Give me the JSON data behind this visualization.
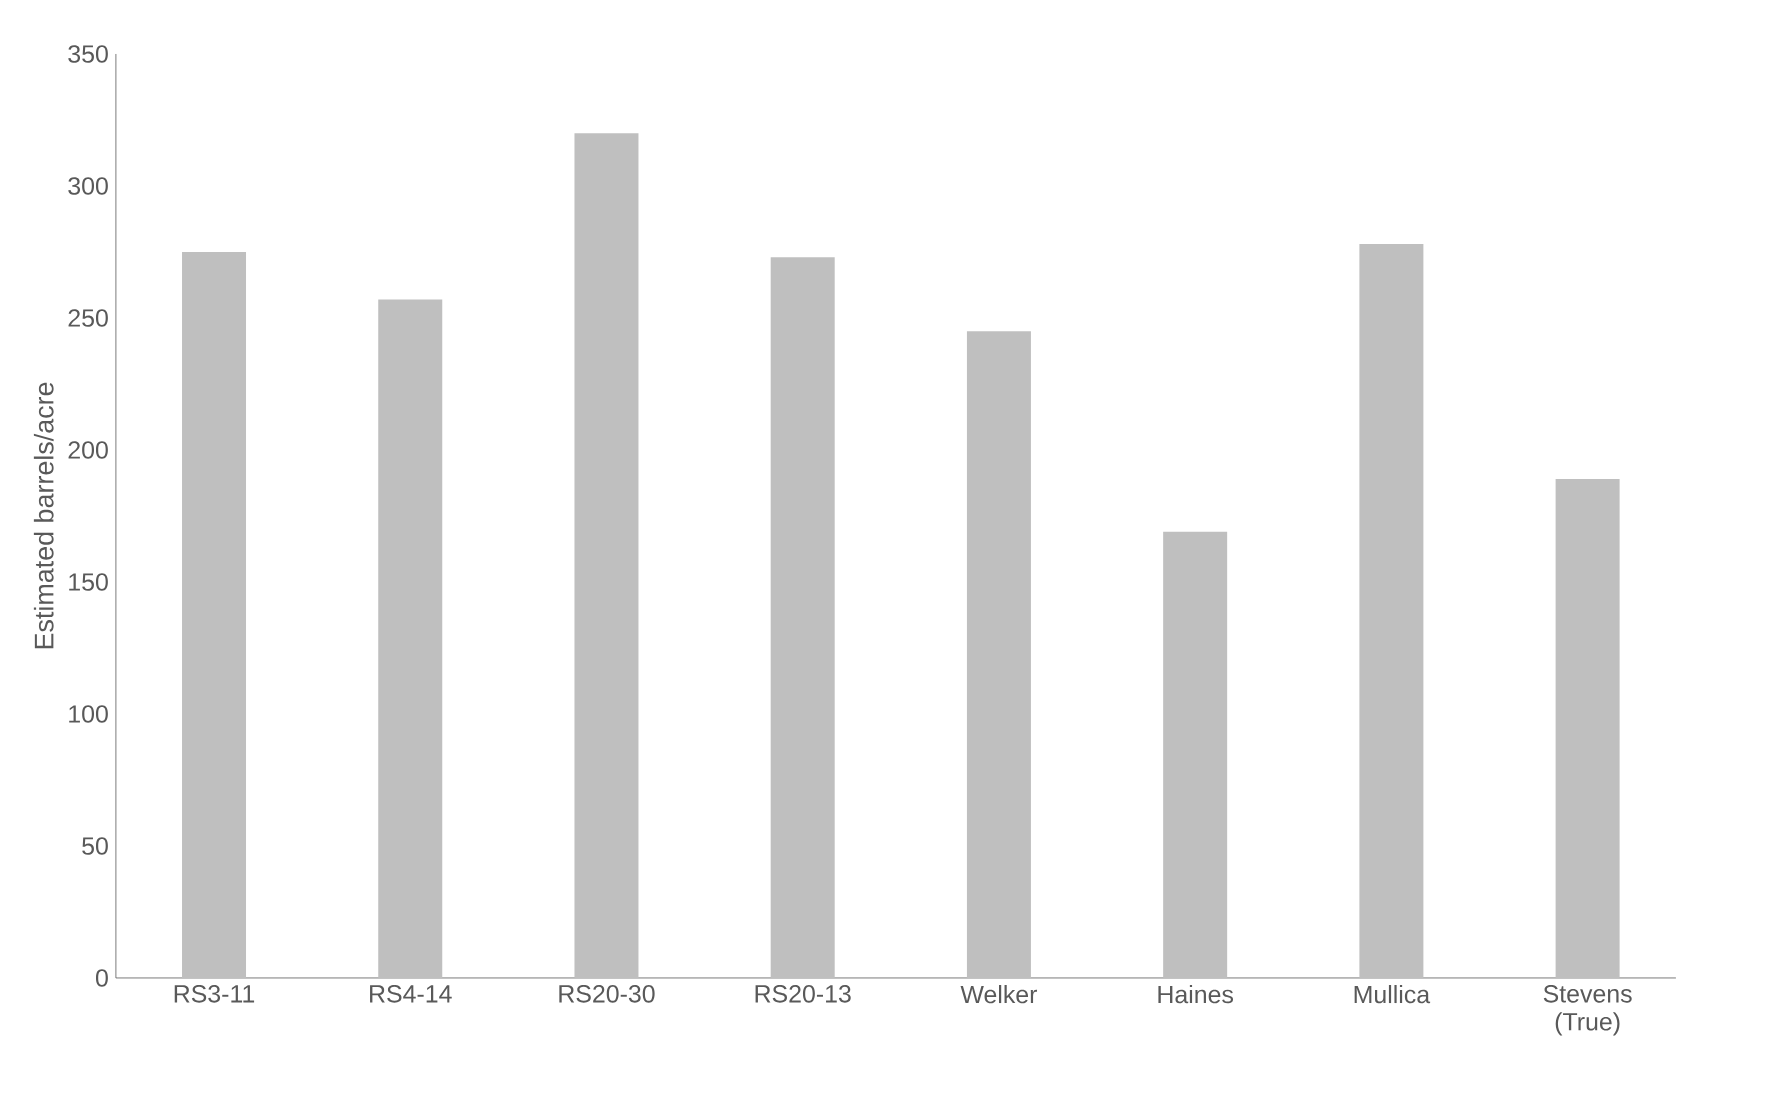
{
  "chart_data": {
    "type": "bar",
    "ylabel": "Estimated barrels/acre",
    "categories": [
      "RS3-11",
      "RS4-14",
      "RS20-30",
      "RS20-13",
      "Welker",
      "Haines",
      "Mullica",
      "Stevens (True)"
    ],
    "values": [
      275,
      257,
      320,
      273,
      245,
      169,
      278,
      189
    ],
    "color": "#bfbfbf",
    "ylim": [
      0,
      350
    ],
    "yticks": [
      0,
      50,
      100,
      150,
      200,
      250,
      300,
      350
    ]
  }
}
